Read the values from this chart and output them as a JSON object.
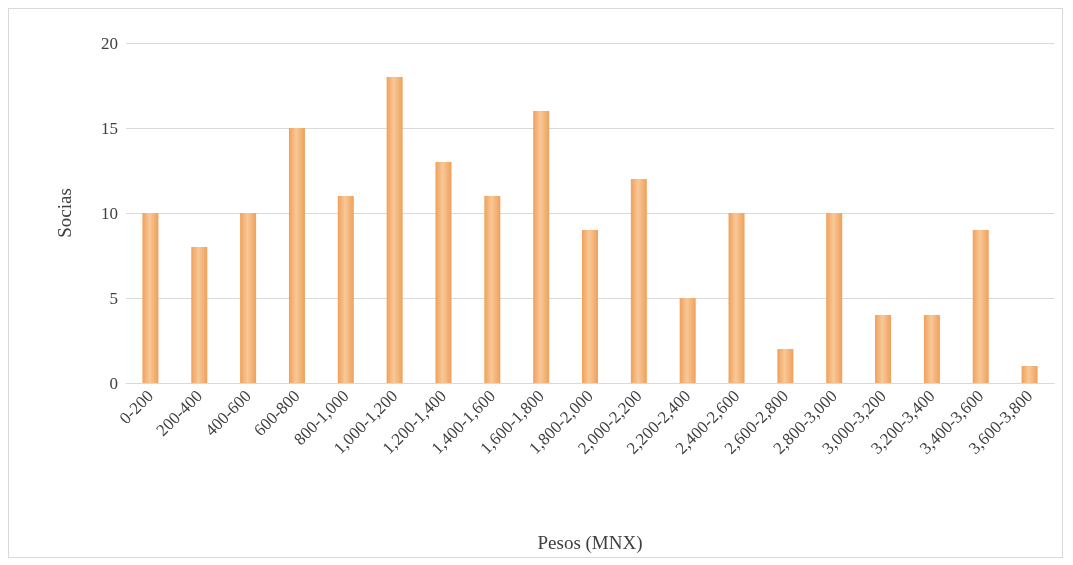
{
  "chart_data": {
    "type": "bar",
    "xlabel": "Pesos (MNX)",
    "ylabel": "Socias",
    "categories": [
      "0-200",
      "200-400",
      "400-600",
      "600-800",
      "800-1,000",
      "1,000-1,200",
      "1,200-1,400",
      "1,400-1,600",
      "1,600-1,800",
      "1,800-2,000",
      "2,000-2,200",
      "2,200-2,400",
      "2,400-2,600",
      "2,600-2,800",
      "2,800-3,000",
      "3,000-3,200",
      "3,200-3,400",
      "3,400-3,600",
      "3,600-3,800"
    ],
    "values": [
      10,
      8,
      10,
      15,
      11,
      18,
      13,
      11,
      16,
      9,
      12,
      5,
      10,
      2,
      10,
      4,
      4,
      9,
      1
    ],
    "color": "#f0a05a",
    "ylim": [
      0,
      20
    ],
    "yticks": [
      0,
      5,
      10,
      15,
      20
    ],
    "grid": "y"
  }
}
